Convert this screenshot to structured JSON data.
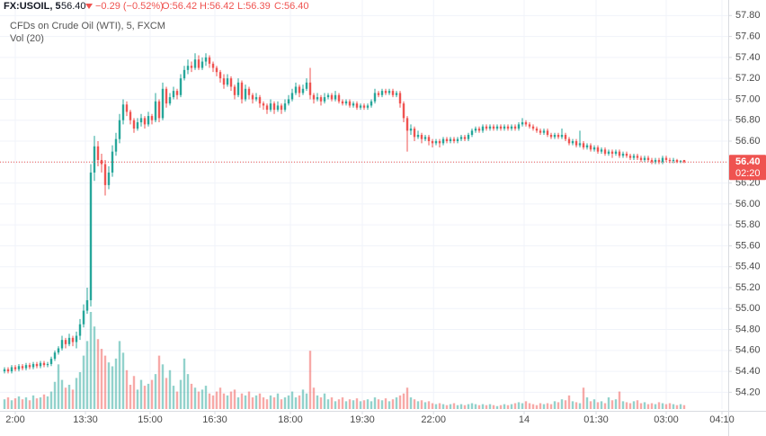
{
  "header": {
    "symbol": "FX:USOIL, 5",
    "last": "56.40",
    "change": "−0.29 (−0.52%)",
    "ohlc": [
      "O:56.42",
      "H:56.42",
      "L:56.39",
      "C:56.40"
    ],
    "description": "CFDs on Crude Oil (WTI), 5, FXCM",
    "indicator": "Vol (20)"
  },
  "chart_data": {
    "type": "candlestick",
    "up_color": "#26a69a",
    "down_color": "#ef5350",
    "xlim": [
      -1.25,
      201.25
    ],
    "ylim": [
      54.04,
      57.88
    ],
    "vlim": [
      0,
      100
    ],
    "grid": true,
    "last_price": {
      "value": 56.4,
      "label": "56.40"
    },
    "countdown": "02:20",
    "xticks": [
      {
        "value": 3,
        "label": "2:00"
      },
      {
        "value": 22.5,
        "label": "13:30"
      },
      {
        "value": 40.5,
        "label": "15:00"
      },
      {
        "value": 58.5,
        "label": "16:30"
      },
      {
        "value": 79.5,
        "label": "18:00"
      },
      {
        "value": 99.5,
        "label": "19:30"
      },
      {
        "value": 119.3,
        "label": "22:00"
      },
      {
        "value": 144.5,
        "label": "14"
      },
      {
        "value": 164.5,
        "label": "01:30"
      },
      {
        "value": 184,
        "label": "03:00"
      },
      {
        "value": 199.5,
        "label": "04:10"
      }
    ],
    "yticks": [
      {
        "value": 54.2,
        "label": "54.20"
      },
      {
        "value": 54.4,
        "label": "54.40"
      },
      {
        "value": 54.6,
        "label": "54.60"
      },
      {
        "value": 54.8,
        "label": "54.80"
      },
      {
        "value": 55.0,
        "label": "55.00"
      },
      {
        "value": 55.2,
        "label": "55.20"
      },
      {
        "value": 55.4,
        "label": "55.40"
      },
      {
        "value": 55.6,
        "label": "55.60"
      },
      {
        "value": 55.8,
        "label": "55.80"
      },
      {
        "value": 56.0,
        "label": "56.00"
      },
      {
        "value": 56.2,
        "label": "56.20"
      },
      {
        "value": 56.4,
        "label": "56.40"
      },
      {
        "value": 56.6,
        "label": "56.60"
      },
      {
        "value": 56.8,
        "label": "56.80"
      },
      {
        "value": 57.0,
        "label": "57.00"
      },
      {
        "value": 57.2,
        "label": "57.20"
      },
      {
        "value": 57.4,
        "label": "57.40"
      },
      {
        "value": 57.6,
        "label": "57.60"
      },
      {
        "value": 57.8,
        "label": "57.80"
      }
    ],
    "ohlc": [
      [
        54.4,
        54.44,
        54.38,
        54.42
      ],
      [
        54.42,
        54.44,
        54.38,
        54.4
      ],
      [
        54.4,
        54.46,
        54.38,
        54.44
      ],
      [
        54.44,
        54.46,
        54.4,
        54.42
      ],
      [
        54.42,
        54.47,
        54.4,
        54.45
      ],
      [
        54.45,
        54.47,
        54.41,
        54.43
      ],
      [
        54.43,
        54.48,
        54.41,
        54.46
      ],
      [
        54.46,
        54.48,
        54.42,
        54.44
      ],
      [
        54.44,
        54.49,
        54.42,
        54.47
      ],
      [
        54.47,
        54.49,
        54.43,
        54.45
      ],
      [
        54.45,
        54.5,
        54.43,
        54.48
      ],
      [
        54.48,
        54.5,
        54.44,
        54.46
      ],
      [
        54.46,
        54.49,
        54.44,
        54.47
      ],
      [
        54.47,
        54.54,
        54.45,
        54.52
      ],
      [
        54.52,
        54.6,
        54.5,
        54.58
      ],
      [
        54.58,
        54.64,
        54.56,
        54.62
      ],
      [
        54.62,
        54.74,
        54.6,
        54.7
      ],
      [
        54.7,
        54.72,
        54.62,
        54.66
      ],
      [
        54.66,
        54.76,
        54.64,
        54.72
      ],
      [
        54.72,
        54.74,
        54.64,
        54.68
      ],
      [
        54.68,
        54.78,
        54.62,
        54.74
      ],
      [
        54.74,
        54.9,
        54.7,
        54.85
      ],
      [
        54.85,
        55.04,
        54.82,
        54.98
      ],
      [
        54.98,
        55.2,
        54.95,
        55.08
      ],
      [
        55.08,
        56.38,
        55.02,
        56.3
      ],
      [
        56.3,
        56.65,
        56.22,
        56.55
      ],
      [
        56.55,
        56.6,
        56.36,
        56.42
      ],
      [
        56.42,
        56.48,
        56.3,
        56.38
      ],
      [
        56.38,
        56.42,
        56.08,
        56.18
      ],
      [
        56.18,
        56.36,
        56.14,
        56.3
      ],
      [
        56.3,
        56.56,
        56.26,
        56.5
      ],
      [
        56.5,
        56.68,
        56.46,
        56.62
      ],
      [
        56.62,
        56.86,
        56.58,
        56.8
      ],
      [
        56.8,
        57.0,
        56.76,
        56.95
      ],
      [
        56.95,
        56.98,
        56.84,
        56.88
      ],
      [
        56.88,
        56.9,
        56.76,
        56.8
      ],
      [
        56.8,
        56.82,
        56.68,
        56.72
      ],
      [
        56.72,
        56.82,
        56.7,
        56.78
      ],
      [
        56.78,
        56.86,
        56.74,
        56.82
      ],
      [
        56.82,
        56.84,
        56.72,
        56.76
      ],
      [
        56.76,
        56.88,
        56.74,
        56.84
      ],
      [
        56.84,
        56.86,
        56.76,
        56.8
      ],
      [
        56.8,
        57.06,
        56.78,
        56.98
      ],
      [
        56.98,
        57.0,
        56.78,
        56.82
      ],
      [
        56.82,
        57.16,
        56.8,
        57.1
      ],
      [
        57.1,
        57.12,
        56.92,
        56.96
      ],
      [
        56.96,
        57.06,
        56.94,
        57.02
      ],
      [
        57.02,
        57.12,
        57.0,
        57.08
      ],
      [
        57.08,
        57.1,
        57.0,
        57.04
      ],
      [
        57.04,
        57.24,
        57.02,
        57.2
      ],
      [
        57.2,
        57.32,
        57.18,
        57.28
      ],
      [
        57.28,
        57.38,
        57.24,
        57.32
      ],
      [
        57.32,
        57.36,
        57.26,
        57.3
      ],
      [
        57.3,
        57.44,
        57.28,
        57.38
      ],
      [
        57.38,
        57.42,
        57.28,
        57.3
      ],
      [
        57.3,
        57.4,
        57.28,
        57.36
      ],
      [
        57.36,
        57.44,
        57.32,
        57.4
      ],
      [
        57.4,
        57.42,
        57.3,
        57.34
      ],
      [
        57.34,
        57.36,
        57.26,
        57.3
      ],
      [
        57.3,
        57.32,
        57.22,
        57.26
      ],
      [
        57.26,
        57.28,
        57.16,
        57.2
      ],
      [
        57.2,
        57.24,
        57.1,
        57.14
      ],
      [
        57.14,
        57.24,
        57.12,
        57.2
      ],
      [
        57.2,
        57.22,
        57.08,
        57.12
      ],
      [
        57.12,
        57.14,
        57.0,
        57.04
      ],
      [
        57.04,
        57.2,
        57.02,
        57.16
      ],
      [
        57.16,
        57.18,
        56.96,
        57.0
      ],
      [
        57.0,
        57.14,
        56.98,
        57.1
      ],
      [
        57.1,
        57.12,
        57.0,
        57.04
      ],
      [
        57.04,
        57.06,
        56.96,
        57.0
      ],
      [
        57.0,
        57.06,
        56.98,
        57.02
      ],
      [
        57.02,
        57.04,
        56.92,
        56.96
      ],
      [
        56.96,
        56.98,
        56.9,
        56.94
      ],
      [
        56.94,
        56.96,
        56.86,
        56.9
      ],
      [
        56.9,
        57.0,
        56.88,
        56.96
      ],
      [
        56.96,
        56.98,
        56.86,
        56.9
      ],
      [
        56.9,
        56.98,
        56.88,
        56.94
      ],
      [
        56.94,
        56.96,
        56.86,
        56.9
      ],
      [
        56.9,
        57.0,
        56.88,
        56.96
      ],
      [
        56.96,
        57.04,
        56.94,
        57.0
      ],
      [
        57.0,
        57.1,
        56.98,
        57.06
      ],
      [
        57.06,
        57.16,
        57.04,
        57.12
      ],
      [
        57.12,
        57.14,
        57.02,
        57.06
      ],
      [
        57.06,
        57.14,
        57.04,
        57.1
      ],
      [
        57.1,
        57.2,
        57.08,
        57.16
      ],
      [
        57.16,
        57.3,
        57.0,
        57.04
      ],
      [
        57.04,
        57.06,
        56.96,
        57.0
      ],
      [
        57.0,
        57.06,
        56.98,
        57.02
      ],
      [
        57.02,
        57.04,
        56.94,
        56.98
      ],
      [
        56.98,
        57.06,
        56.96,
        57.02
      ],
      [
        57.02,
        57.06,
        57.0,
        57.04
      ],
      [
        57.04,
        57.06,
        56.98,
        57.0
      ],
      [
        57.0,
        57.08,
        56.98,
        57.04
      ],
      [
        57.04,
        57.06,
        56.96,
        56.98
      ],
      [
        56.98,
        57.0,
        56.94,
        56.96
      ],
      [
        56.96,
        57.0,
        56.94,
        56.98
      ],
      [
        56.98,
        57.0,
        56.92,
        56.94
      ],
      [
        56.94,
        56.98,
        56.92,
        56.96
      ],
      [
        56.96,
        56.98,
        56.9,
        56.92
      ],
      [
        56.92,
        56.96,
        56.9,
        56.94
      ],
      [
        56.94,
        56.96,
        56.9,
        56.92
      ],
      [
        56.92,
        56.96,
        56.9,
        56.94
      ],
      [
        56.94,
        57.0,
        56.92,
        56.98
      ],
      [
        56.98,
        57.1,
        56.96,
        57.06
      ],
      [
        57.06,
        57.08,
        57.02,
        57.04
      ],
      [
        57.04,
        57.1,
        57.02,
        57.08
      ],
      [
        57.08,
        57.1,
        57.04,
        57.06
      ],
      [
        57.06,
        57.1,
        57.04,
        57.08
      ],
      [
        57.08,
        57.1,
        57.02,
        57.04
      ],
      [
        57.04,
        57.08,
        57.02,
        57.06
      ],
      [
        57.06,
        57.08,
        56.92,
        56.96
      ],
      [
        56.96,
        56.98,
        56.78,
        56.82
      ],
      [
        56.82,
        56.84,
        56.5,
        56.7
      ],
      [
        56.7,
        56.76,
        56.66,
        56.72
      ],
      [
        56.72,
        56.74,
        56.6,
        56.64
      ],
      [
        56.64,
        56.7,
        56.62,
        56.66
      ],
      [
        56.66,
        56.68,
        56.58,
        56.62
      ],
      [
        56.62,
        56.66,
        56.6,
        56.64
      ],
      [
        56.64,
        56.66,
        56.56,
        56.6
      ],
      [
        56.6,
        56.62,
        56.54,
        56.58
      ],
      [
        56.58,
        56.62,
        56.56,
        56.6
      ],
      [
        56.6,
        56.62,
        56.54,
        56.58
      ],
      [
        56.58,
        56.64,
        56.56,
        56.62
      ],
      [
        56.62,
        56.64,
        56.58,
        56.6
      ],
      [
        56.6,
        56.64,
        56.58,
        56.62
      ],
      [
        56.62,
        56.64,
        56.58,
        56.6
      ],
      [
        56.6,
        56.64,
        56.58,
        56.62
      ],
      [
        56.62,
        56.66,
        56.6,
        56.64
      ],
      [
        56.64,
        56.66,
        56.6,
        56.62
      ],
      [
        56.62,
        56.68,
        56.6,
        56.66
      ],
      [
        56.66,
        56.72,
        56.64,
        56.7
      ],
      [
        56.7,
        56.74,
        56.68,
        56.72
      ],
      [
        56.72,
        56.74,
        56.68,
        56.7
      ],
      [
        56.7,
        56.76,
        56.68,
        56.74
      ],
      [
        56.74,
        56.76,
        56.7,
        56.72
      ],
      [
        56.72,
        56.76,
        56.7,
        56.74
      ],
      [
        56.74,
        56.76,
        56.7,
        56.72
      ],
      [
        56.72,
        56.76,
        56.7,
        56.74
      ],
      [
        56.74,
        56.76,
        56.7,
        56.72
      ],
      [
        56.72,
        56.76,
        56.7,
        56.74
      ],
      [
        56.74,
        56.76,
        56.7,
        56.72
      ],
      [
        56.72,
        56.76,
        56.7,
        56.74
      ],
      [
        56.74,
        56.76,
        56.7,
        56.72
      ],
      [
        56.72,
        56.78,
        56.7,
        56.76
      ],
      [
        56.76,
        56.82,
        56.74,
        56.78
      ],
      [
        56.78,
        56.8,
        56.74,
        56.76
      ],
      [
        56.76,
        56.78,
        56.72,
        56.74
      ],
      [
        56.74,
        56.76,
        56.7,
        56.72
      ],
      [
        56.72,
        56.74,
        56.68,
        56.7
      ],
      [
        56.7,
        56.72,
        56.66,
        56.68
      ],
      [
        56.68,
        56.72,
        56.66,
        56.7
      ],
      [
        56.7,
        56.72,
        56.64,
        56.66
      ],
      [
        56.66,
        56.68,
        56.62,
        56.64
      ],
      [
        56.64,
        56.68,
        56.62,
        56.66
      ],
      [
        56.66,
        56.68,
        56.62,
        56.64
      ],
      [
        56.64,
        56.72,
        56.62,
        56.66
      ],
      [
        56.66,
        56.68,
        56.6,
        56.62
      ],
      [
        56.62,
        56.64,
        56.56,
        56.58
      ],
      [
        56.58,
        56.62,
        56.56,
        56.6
      ],
      [
        56.6,
        56.62,
        56.54,
        56.56
      ],
      [
        56.56,
        56.7,
        56.54,
        56.58
      ],
      [
        56.58,
        56.6,
        56.52,
        56.54
      ],
      [
        56.54,
        56.58,
        56.52,
        56.56
      ],
      [
        56.56,
        56.58,
        56.5,
        56.52
      ],
      [
        56.52,
        56.56,
        56.5,
        56.54
      ],
      [
        56.54,
        56.56,
        56.48,
        56.5
      ],
      [
        56.5,
        56.54,
        56.48,
        56.52
      ],
      [
        56.52,
        56.54,
        56.46,
        56.48
      ],
      [
        56.48,
        56.52,
        56.46,
        56.5
      ],
      [
        56.5,
        56.52,
        56.44,
        56.48
      ],
      [
        56.48,
        56.52,
        56.46,
        56.5
      ],
      [
        56.5,
        56.52,
        56.44,
        56.46
      ],
      [
        56.46,
        56.5,
        56.44,
        56.48
      ],
      [
        56.48,
        56.5,
        56.44,
        56.46
      ],
      [
        56.46,
        56.48,
        56.42,
        56.44
      ],
      [
        56.44,
        56.48,
        56.42,
        56.46
      ],
      [
        56.46,
        56.48,
        56.42,
        56.44
      ],
      [
        56.44,
        56.46,
        56.4,
        56.42
      ],
      [
        56.42,
        56.46,
        56.4,
        56.44
      ],
      [
        56.44,
        56.46,
        56.4,
        56.42
      ],
      [
        56.42,
        56.44,
        56.38,
        56.4
      ],
      [
        56.4,
        56.44,
        56.38,
        56.42
      ],
      [
        56.42,
        56.44,
        56.38,
        56.4
      ],
      [
        56.4,
        56.46,
        56.38,
        56.44
      ],
      [
        56.44,
        56.46,
        56.4,
        56.42
      ],
      [
        56.42,
        56.44,
        56.39,
        56.41
      ],
      [
        56.41,
        56.44,
        56.39,
        56.42
      ],
      [
        56.42,
        56.43,
        56.39,
        56.4
      ],
      [
        56.4,
        56.42,
        56.39,
        56.41
      ],
      [
        56.42,
        56.42,
        56.39,
        56.4
      ]
    ],
    "volume": [
      10,
      12,
      9,
      11,
      13,
      10,
      12,
      9,
      14,
      11,
      12,
      15,
      13,
      18,
      28,
      46,
      30,
      22,
      25,
      20,
      32,
      38,
      55,
      70,
      100,
      85,
      72,
      62,
      55,
      48,
      44,
      52,
      70,
      58,
      40,
      25,
      34,
      20,
      30,
      24,
      26,
      30,
      36,
      55,
      46,
      32,
      40,
      24,
      18,
      30,
      52,
      36,
      26,
      22,
      18,
      20,
      24,
      16,
      14,
      18,
      22,
      16,
      14,
      18,
      20,
      12,
      16,
      14,
      18,
      12,
      14,
      16,
      12,
      10,
      14,
      12,
      16,
      10,
      12,
      14,
      18,
      12,
      14,
      20,
      16,
      60,
      22,
      14,
      12,
      16,
      10,
      12,
      8,
      10,
      12,
      8,
      10,
      9,
      11,
      8,
      9,
      10,
      8,
      12,
      10,
      9,
      11,
      8,
      10,
      12,
      14,
      16,
      22,
      12,
      10,
      8,
      9,
      7,
      8,
      6,
      5,
      6,
      5,
      4,
      5,
      6,
      4,
      5,
      4,
      5,
      6,
      5,
      4,
      5,
      4,
      5,
      4,
      3,
      4,
      5,
      4,
      5,
      6,
      7,
      6,
      8,
      6,
      5,
      4,
      6,
      5,
      6,
      5,
      8,
      7,
      10,
      9,
      14,
      8,
      7,
      6,
      22,
      12,
      8,
      10,
      7,
      8,
      6,
      12,
      9,
      10,
      18,
      8,
      7,
      6,
      8,
      9,
      6,
      7,
      5,
      6,
      5,
      7,
      6,
      5,
      6,
      5,
      4,
      5,
      4
    ]
  }
}
